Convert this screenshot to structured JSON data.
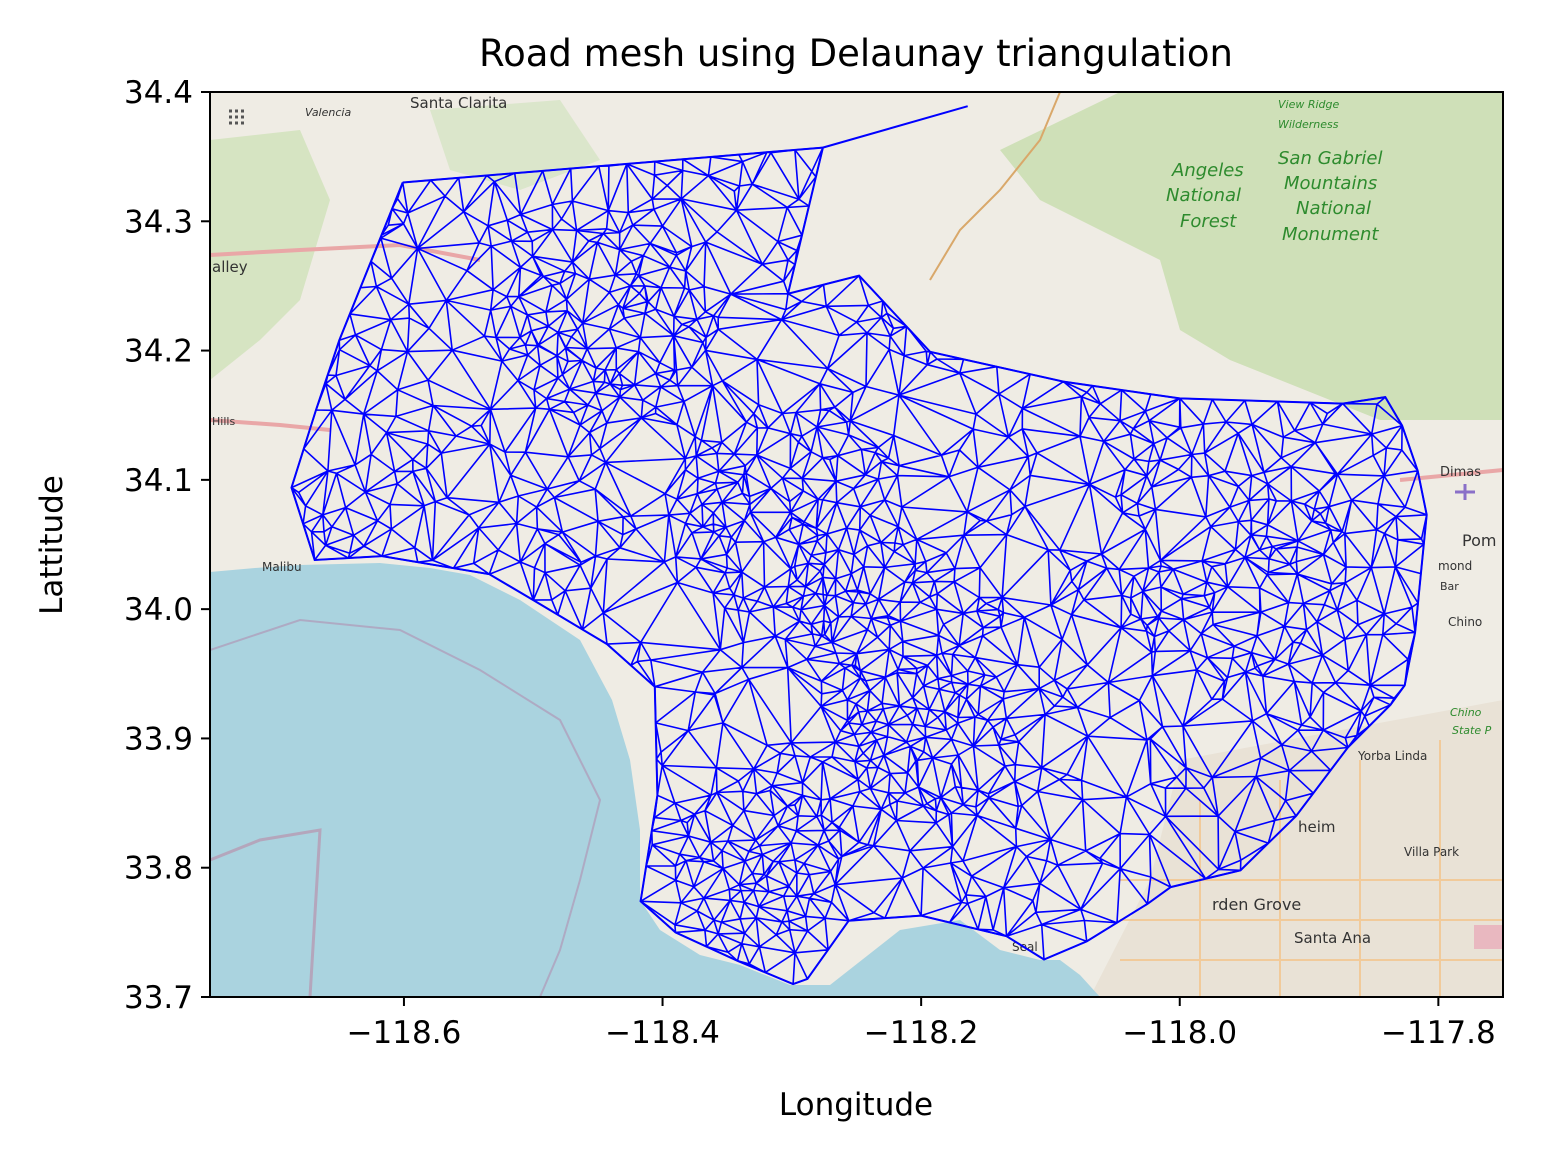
{
  "colors": {
    "mesh": "#0000ff",
    "land": "#efece4",
    "water": "#aad3df",
    "park": "#cfe0b8",
    "axis": "#000000"
  },
  "map_labels": {
    "santa_clarita": "Santa Clarita",
    "valencia": "Valencia",
    "valley": "alley",
    "view_ridge": "View Ridge",
    "wilderness": "Wilderness",
    "angeles1": "Angeles",
    "angeles2": "National",
    "angeles3": "Forest",
    "sg1": "San Gabriel",
    "sg2": "Mountains",
    "sg3": "National",
    "sg4": "Monument",
    "hills": "Hills",
    "malibu": "Malibu",
    "dimas": "Dimas",
    "pom": "Pom",
    "mond": "mond",
    "bar": "Bar",
    "chino": "Chino",
    "chino_sp1": "Chino",
    "chino_sp2": "State P",
    "yorba": "Yorba Linda",
    "heim": "heim",
    "villa": "Villa Park",
    "garden": "rden Grove",
    "santa_ana": "Santa Ana",
    "seal": "Seal"
  },
  "chart_data": {
    "type": "mesh",
    "title": "Road mesh using Delaunay triangulation",
    "xlabel": "Longitude",
    "ylabel": "Lattitude",
    "xlim": [
      -118.75,
      -117.75
    ],
    "ylim": [
      33.7,
      34.4
    ],
    "xticks": [
      -118.6,
      -118.4,
      -118.2,
      -118.0,
      -117.8
    ],
    "xtick_labels": [
      "−118.6",
      "−118.4",
      "−118.2",
      "−118.0",
      "−117.8"
    ],
    "yticks": [
      33.7,
      33.8,
      33.9,
      34.0,
      34.1,
      34.2,
      34.3,
      34.4
    ],
    "ytick_labels": [
      "33.7",
      "33.8",
      "33.9",
      "34.0",
      "34.1",
      "34.2",
      "34.3",
      "34.4"
    ],
    "grid": false,
    "boundary": [
      [
        -118.601,
        34.33
      ],
      [
        -118.276,
        34.357
      ],
      [
        -118.164,
        34.389
      ],
      [
        -118.276,
        34.357
      ],
      [
        -118.303,
        34.244
      ],
      [
        -118.248,
        34.258
      ],
      [
        -118.193,
        34.199
      ],
      [
        -118.09,
        34.176
      ],
      [
        -118.0,
        34.163
      ],
      [
        -117.874,
        34.159
      ],
      [
        -117.841,
        34.164
      ],
      [
        -117.828,
        34.142
      ],
      [
        -117.816,
        34.107
      ],
      [
        -117.809,
        34.073
      ],
      [
        -117.818,
        33.982
      ],
      [
        -117.826,
        33.941
      ],
      [
        -117.837,
        33.926
      ],
      [
        -117.87,
        33.893
      ],
      [
        -117.91,
        33.84
      ],
      [
        -117.953,
        33.798
      ],
      [
        -118.007,
        33.785
      ],
      [
        -118.025,
        33.772
      ],
      [
        -118.072,
        33.743
      ],
      [
        -118.105,
        33.729
      ],
      [
        -118.134,
        33.747
      ],
      [
        -118.2,
        33.763
      ],
      [
        -118.256,
        33.759
      ],
      [
        -118.288,
        33.714
      ],
      [
        -118.299,
        33.71
      ],
      [
        -118.342,
        33.728
      ],
      [
        -118.39,
        33.75
      ],
      [
        -118.417,
        33.774
      ],
      [
        -118.404,
        33.856
      ],
      [
        -118.406,
        33.94
      ],
      [
        -118.443,
        33.973
      ],
      [
        -118.5,
        34.007
      ],
      [
        -118.534,
        34.027
      ],
      [
        -118.617,
        34.041
      ],
      [
        -118.669,
        34.038
      ],
      [
        -118.687,
        34.094
      ],
      [
        -118.668,
        34.154
      ],
      [
        -118.65,
        34.208
      ],
      [
        -118.601,
        34.33
      ]
    ]
  }
}
